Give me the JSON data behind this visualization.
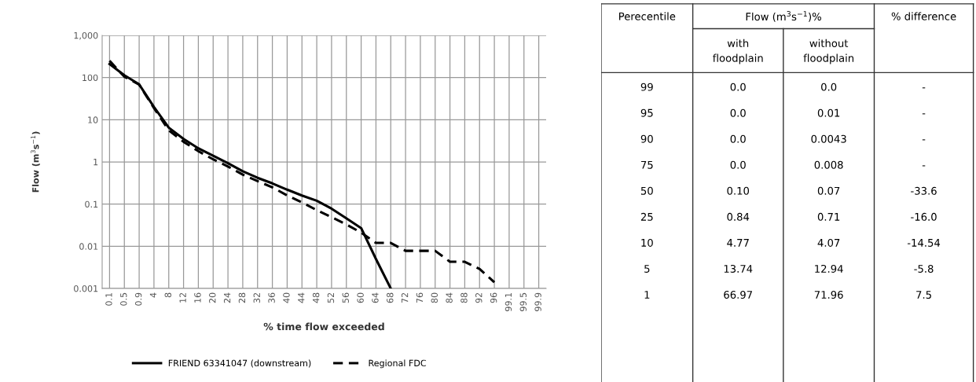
{
  "chart_data": [
    {
      "type": "line",
      "xlabel": "% time flow exceeded",
      "ylabel": "Flow (m$^{3}$s$^{−1}$)",
      "categories": [
        "0.1",
        "0.5",
        "0.9",
        "4",
        "8",
        "12",
        "16",
        "20",
        "24",
        "28",
        "32",
        "36",
        "40",
        "44",
        "48",
        "52",
        "56",
        "60",
        "64",
        "68",
        "72",
        "76",
        "80",
        "84",
        "88",
        "92",
        "96",
        "99.1",
        "99.5",
        "99.9"
      ],
      "series": [
        {
          "name": "FRIEND 63341047 (downstream)",
          "color": "#000000",
          "line_style": "solid",
          "values": [
            210,
            113,
            69,
            20,
            6.5,
            3.5,
            2.1,
            1.4,
            0.93,
            0.6,
            0.42,
            0.31,
            0.22,
            0.16,
            0.12,
            0.078,
            0.046,
            0.027,
            0.005,
            0.001,
            null,
            null,
            null,
            null,
            null,
            null,
            null,
            null,
            null,
            null
          ]
        },
        {
          "name": "Regional FDC",
          "color": "#000000",
          "line_style": "dashed",
          "values": [
            250,
            105,
            68,
            19,
            5.6,
            3.0,
            1.8,
            1.15,
            0.78,
            0.5,
            0.35,
            0.25,
            0.16,
            0.11,
            0.072,
            0.049,
            0.033,
            0.021,
            0.012,
            0.012,
            0.0078,
            0.0078,
            0.0078,
            0.0043,
            0.0043,
            0.0029,
            0.0014,
            null,
            null,
            null
          ]
        }
      ],
      "log": "y",
      "ylim": [
        0.001,
        1000
      ],
      "yticks": [
        0.001,
        0.01,
        0.1,
        1,
        10,
        100,
        {
          "value": 1000,
          "label": "1,000"
        }
      ],
      "grid": true,
      "legend": "bottom",
      "marker": "none"
    },
    {
      "type": "other",
      "annotations": [
        "Perecentile",
        "Flow (m$^{3}$s$^{−1}$)%",
        "% difference",
        "with\nfloodplain",
        "without\nfloodplain",
        "99",
        "0.0",
        "0.0",
        "-",
        "95",
        "0.0",
        "0.01",
        "-",
        "90",
        "0.0",
        "0.0043",
        "-",
        "75",
        "0.0",
        "0.008",
        "-",
        "50",
        "0.10",
        "0.07",
        "-33.6",
        "25",
        "0.84",
        "0.71",
        "-16.0",
        "10",
        "4.77",
        "4.07",
        "-14.54",
        "5",
        "13.74",
        "12.94",
        "-5.8",
        "1",
        "66.97",
        "71.96",
        "7.5"
      ]
    }
  ]
}
